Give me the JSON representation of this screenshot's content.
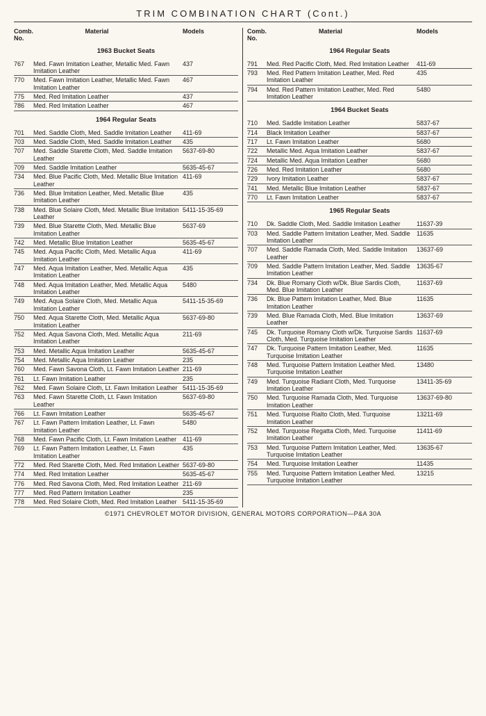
{
  "title": "TRIM COMBINATION CHART (Cont.)",
  "headers": {
    "comb": "Comb.\nNo.",
    "material": "Material",
    "models": "Models"
  },
  "footer": "©1971 CHEVROLET MOTOR DIVISION, GENERAL MOTORS CORPORATION—P&A 30A",
  "left": [
    {
      "type": "section",
      "title": "1963 Bucket Seats"
    },
    {
      "no": "767",
      "mat": "Med. Fawn Imitation Leather, Metallic Med. Fawn Imitation Leather",
      "mod": "437"
    },
    {
      "no": "770",
      "mat": "Med. Fawn Imitation Leather, Metallic Med. Fawn Imitation Leather",
      "mod": "467"
    },
    {
      "no": "775",
      "mat": "Med. Red Imitation Leather",
      "mod": "437"
    },
    {
      "no": "786",
      "mat": "Med. Red Imitation Leather",
      "mod": "467"
    },
    {
      "type": "section",
      "title": "1964 Regular Seats"
    },
    {
      "no": "701",
      "mat": "Med. Saddle Cloth, Med. Saddle Imitation Leather",
      "mod": "411-69"
    },
    {
      "no": "703",
      "mat": "Med. Saddle Cloth, Med. Saddle Imitation Leather",
      "mod": "435"
    },
    {
      "no": "707",
      "mat": "Med. Saddle Starette Cloth, Med. Saddle Imitation Leather",
      "mod": "5637-69-80"
    },
    {
      "no": "709",
      "mat": "Med. Saddle Imitation Leather",
      "mod": "5635-45-67"
    },
    {
      "no": "734",
      "mat": "Med. Blue Pacific Cloth, Med. Metallic Blue Imitation Leather",
      "mod": "411-69"
    },
    {
      "no": "736",
      "mat": "Med. Blue Imitation Leather, Med. Metallic Blue Imitation Leather",
      "mod": "435"
    },
    {
      "no": "738",
      "mat": "Med. Blue Solaire Cloth, Med. Metallic Blue Imitation Leather",
      "mod": "5411-15-35-69"
    },
    {
      "no": "739",
      "mat": "Med. Blue Starette Cloth, Med. Metallic Blue Imitation Leather",
      "mod": "5637-69"
    },
    {
      "no": "742",
      "mat": "Med. Metallic Blue Imitation Leather",
      "mod": "5635-45-67"
    },
    {
      "no": "745",
      "mat": "Med. Aqua Pacific Cloth, Med. Metallic Aqua Imitation Leather",
      "mod": "411-69"
    },
    {
      "no": "747",
      "mat": "Med. Aqua Imitation Leather, Med. Metallic Aqua Imitation Leather",
      "mod": "435"
    },
    {
      "no": "748",
      "mat": "Med. Aqua Imitation Leather, Med. Metallic Aqua Imitation Leather",
      "mod": "5480"
    },
    {
      "no": "749",
      "mat": "Med. Aqua Solaire Cloth, Med. Metallic Aqua Imitation Leather",
      "mod": "5411-15-35-69"
    },
    {
      "no": "750",
      "mat": "Med. Aqua Starette Cloth, Med. Metallic Aqua Imitation Leather",
      "mod": "5637-69-80"
    },
    {
      "no": "752",
      "mat": "Med. Aqua Savona Cloth, Med. Metallic Aqua Imitation Leather",
      "mod": "211-69"
    },
    {
      "no": "753",
      "mat": "Med. Metallic Aqua Imitation Leather",
      "mod": "5635-45-67"
    },
    {
      "no": "754",
      "mat": "Med. Metallic Aqua Imitation Leather",
      "mod": "235"
    },
    {
      "no": "760",
      "mat": "Med. Fawn Savona Cloth, Lt. Fawn Imitation Leather",
      "mod": "211-69"
    },
    {
      "no": "761",
      "mat": "Lt. Fawn Imitation Leather",
      "mod": "235"
    },
    {
      "no": "762",
      "mat": "Med. Fawn Solaire Cloth, Lt. Fawn Imitation Leather",
      "mod": "5411-15-35-69"
    },
    {
      "no": "763",
      "mat": "Med. Fawn Starette Cloth, Lt. Fawn Imitation Leather",
      "mod": "5637-69-80"
    },
    {
      "no": "766",
      "mat": "Lt. Fawn Imitation Leather",
      "mod": "5635-45-67"
    },
    {
      "no": "767",
      "mat": "Lt. Fawn Pattern Imitation Leather, Lt. Fawn Imitation Leather",
      "mod": "5480"
    },
    {
      "no": "768",
      "mat": "Med. Fawn Pacific Cloth, Lt. Fawn Imitation Leather",
      "mod": "411-69"
    },
    {
      "no": "769",
      "mat": "Lt. Fawn Pattern Imitation Leather, Lt. Fawn Imitation Leather",
      "mod": "435"
    },
    {
      "no": "772",
      "mat": "Med. Red Starette Cloth, Med. Red Imitation Leather",
      "mod": "5637-69-80"
    },
    {
      "no": "774",
      "mat": "Med. Red Imitation Leather",
      "mod": "5635-45-67"
    },
    {
      "no": "776",
      "mat": "Med. Red Savona Cloth, Med. Red Imitation Leather",
      "mod": "211-69"
    },
    {
      "no": "777",
      "mat": "Med. Red Pattern Imitation Leather",
      "mod": "235"
    },
    {
      "no": "778",
      "mat": "Med. Red Solaire Cloth, Med. Red Imitation Leather",
      "mod": "5411-15-35-69"
    }
  ],
  "right": [
    {
      "type": "section",
      "title": "1964 Regular Seats"
    },
    {
      "no": "791",
      "mat": "Med. Red Pacific Cloth, Med. Red Imitation Leather",
      "mod": "411-69"
    },
    {
      "no": "793",
      "mat": "Med. Red Pattern Imitation Leather, Med. Red Imitation Leather",
      "mod": "435"
    },
    {
      "no": "794",
      "mat": "Med. Red Pattern Imitation Leather, Med. Red Imitation Leather",
      "mod": "5480"
    },
    {
      "type": "section",
      "title": "1964 Bucket Seats"
    },
    {
      "no": "710",
      "mat": "Med. Saddle Imitation Leather",
      "mod": "5837-67"
    },
    {
      "no": "714",
      "mat": "Black Imitation Leather",
      "mod": "5837-67"
    },
    {
      "no": "717",
      "mat": "Lt. Fawn Imitation Leather",
      "mod": "5680"
    },
    {
      "no": "722",
      "mat": "Metallic Med. Aqua Imitation Leather",
      "mod": "5837-67"
    },
    {
      "no": "724",
      "mat": "Metallic Med. Aqua Imitation Leather",
      "mod": "5680"
    },
    {
      "no": "726",
      "mat": "Med. Red Imitation Leather",
      "mod": "5680"
    },
    {
      "no": "729",
      "mat": "Ivory Imitation Leather",
      "mod": "5837-67"
    },
    {
      "no": "741",
      "mat": "Med. Metallic Blue Imitation Leather",
      "mod": "5837-67"
    },
    {
      "no": "770",
      "mat": "Lt. Fawn Imitation Leather",
      "mod": "5837-67"
    },
    {
      "type": "section",
      "title": "1965 Regular Seats"
    },
    {
      "no": "710",
      "mat": "Dk. Saddle Cloth, Med. Saddle Imitation Leather",
      "mod": "11637-39"
    },
    {
      "no": "703",
      "mat": "Med. Saddle Pattern Imitation Leather, Med. Saddle Imitation Leather",
      "mod": "11635"
    },
    {
      "no": "707",
      "mat": "Med. Saddle Ramada Cloth, Med. Saddle Imitation Leather",
      "mod": "13637-69"
    },
    {
      "no": "709",
      "mat": "Med. Saddle Pattern Imitation Leather, Med. Saddle Imitation Leather",
      "mod": "13635-67"
    },
    {
      "no": "734",
      "mat": "Dk. Blue Romany Cloth w/Dk. Blue Sardis Cloth, Med. Blue Imitation Leather",
      "mod": "11637-69"
    },
    {
      "no": "736",
      "mat": "Dk. Blue Pattern Imitation Leather, Med. Blue Imitation Leather",
      "mod": "11635"
    },
    {
      "no": "739",
      "mat": "Med. Blue Ramada Cloth, Med. Blue Imitation Leather",
      "mod": "13637-69"
    },
    {
      "no": "745",
      "mat": "Dk. Turquoise Romany Cloth w/Dk. Turquoise Sardis Cloth, Med. Turquoise Imitation Leather",
      "mod": "11637-69"
    },
    {
      "no": "747",
      "mat": "Dk. Turquoise Pattern Imitation Leather, Med. Turquoise Imitation Leather",
      "mod": "11635"
    },
    {
      "no": "748",
      "mat": "Med. Turquoise Pattern Imitation Leather Med. Turquoise Imitation Leather",
      "mod": "13480"
    },
    {
      "no": "749",
      "mat": "Med. Turquoise Radiant Cloth, Med. Turquoise Imitation Leather",
      "mod": "13411-35-69"
    },
    {
      "no": "750",
      "mat": "Med. Turquoise Ramada Cloth, Med. Turquoise Imitation Leather",
      "mod": "13637-69-80"
    },
    {
      "no": "751",
      "mat": "Med. Turquoise Rialto Cloth, Med. Turquoise Imitation Leather",
      "mod": "13211-69"
    },
    {
      "no": "752",
      "mat": "Med. Turquoise Regatta Cloth, Med. Turquoise Imitation Leather",
      "mod": "11411-69"
    },
    {
      "no": "753",
      "mat": "Med. Turquoise Pattern Imitation Leather, Med. Turquoise Imitation Leather",
      "mod": "13635-67"
    },
    {
      "no": "754",
      "mat": "Med. Turquoise Imitation Leather",
      "mod": "11435"
    },
    {
      "no": "755",
      "mat": "Med. Turquoise Pattern Imitation Leather Med. Turquoise Imitation Leather",
      "mod": "13215"
    }
  ]
}
